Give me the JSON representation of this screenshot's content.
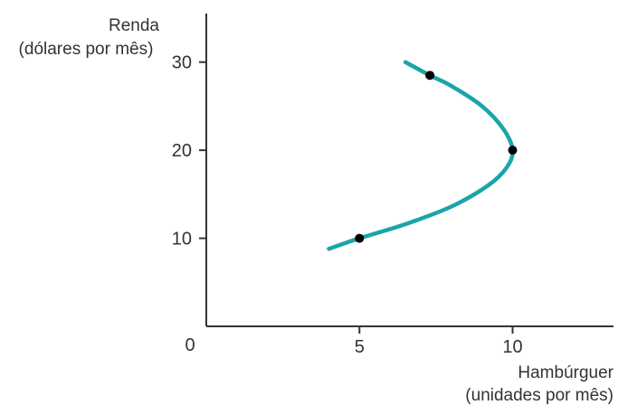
{
  "chart_data": {
    "type": "line",
    "ylabel_line1": "Renda",
    "ylabel_line2": "(dólares por mês)",
    "xlabel_line1": "Hambúrguer",
    "xlabel_line2": "(unidades por mês)",
    "origin_label": "0",
    "xticks": [
      5,
      10
    ],
    "yticks": [
      10,
      20,
      30
    ],
    "xlim": [
      0,
      13.5
    ],
    "ylim": [
      0,
      35
    ],
    "series": [
      {
        "curve_x": [
          4.0,
          5.0,
          6.5,
          8.0,
          9.2,
          9.8,
          10.0,
          9.7,
          9.0,
          8.0,
          7.3,
          6.5
        ],
        "curve_y": [
          8.8,
          10.0,
          11.6,
          13.6,
          16.0,
          18.0,
          20.0,
          22.4,
          25.0,
          27.3,
          28.5,
          30.0
        ],
        "points_x": [
          5.0,
          10.0,
          7.3
        ],
        "points_y": [
          10.0,
          20.0,
          28.5
        ]
      }
    ],
    "colors": {
      "curve": "#1aa5a8",
      "axis": "#333333",
      "point": "#000000"
    }
  }
}
